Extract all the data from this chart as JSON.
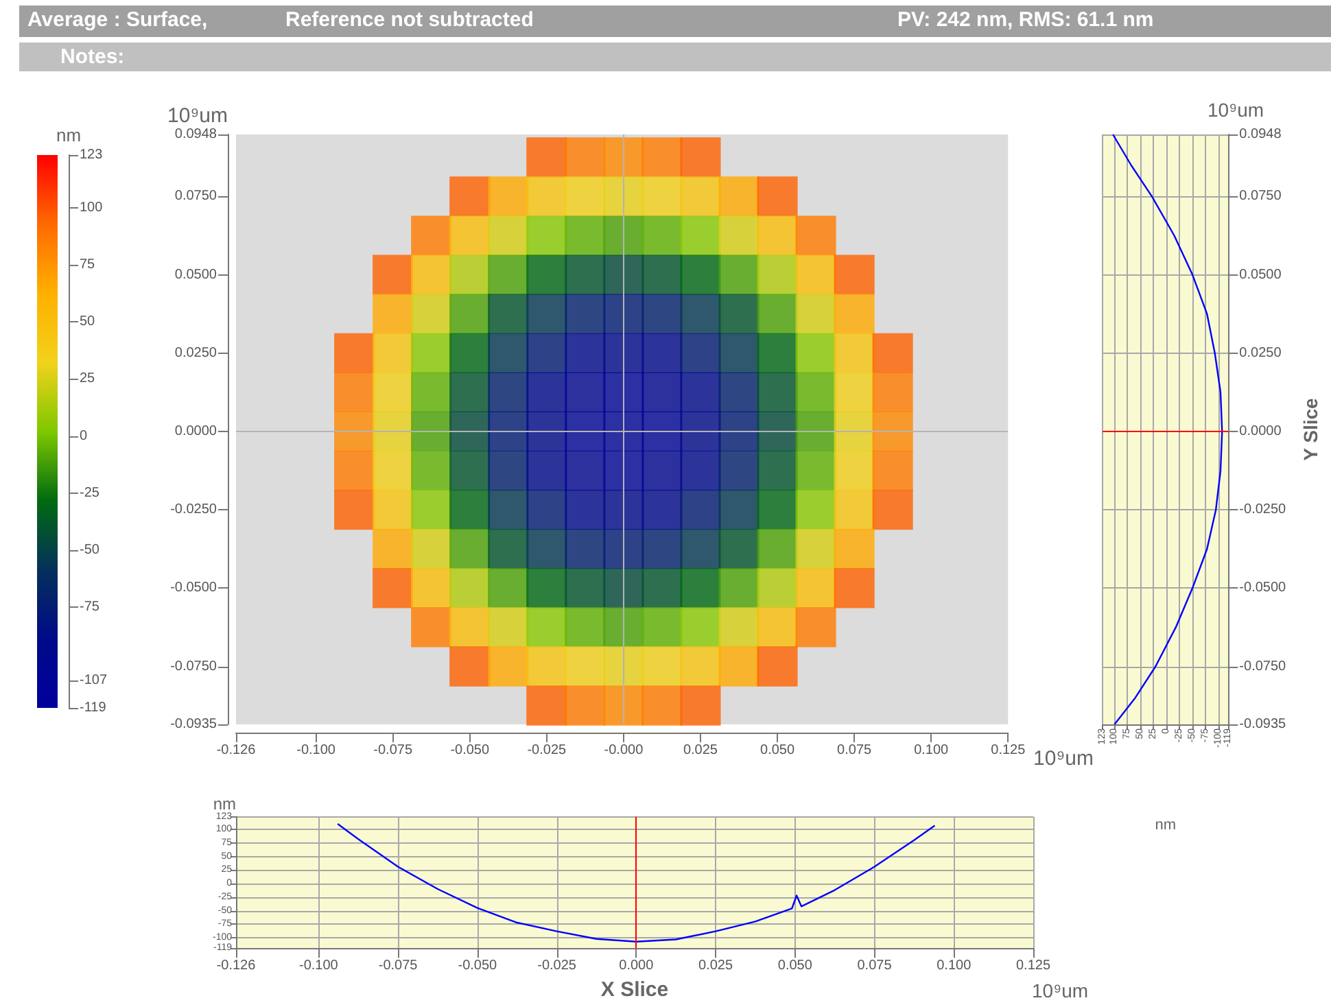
{
  "chart_data": [
    {
      "type": "scatter",
      "annotations": [
        "Average : Surface,",
        "Reference not subtracted",
        "PV: 242 nm, RMS: 61.1 nm",
        "Notes:"
      ],
      "xlabel": "10⁹um",
      "ylabel": "10⁹um",
      "clabel": "nm",
      "marker": "square",
      "grid": false,
      "x": [
        -0.025,
        -0.0125,
        0,
        0.0125,
        0.025,
        -0.05,
        -0.0375,
        -0.025,
        -0.0125,
        0,
        0.0125,
        0.025,
        0.0375,
        0.05,
        -0.0625,
        -0.05,
        -0.0375,
        -0.025,
        -0.0125,
        0,
        0.0125,
        0.025,
        0.0375,
        0.05,
        0.0625,
        -0.075,
        -0.0625,
        -0.05,
        -0.0375,
        -0.025,
        -0.0125,
        0,
        0.0125,
        0.025,
        0.0375,
        0.05,
        0.0625,
        0.075,
        -0.075,
        -0.0625,
        -0.05,
        -0.0375,
        -0.025,
        -0.0125,
        0,
        0.0125,
        0.025,
        0.0375,
        0.05,
        0.0625,
        0.075,
        -0.0875,
        -0.075,
        -0.0625,
        -0.05,
        -0.0375,
        -0.025,
        -0.0125,
        0,
        0.0125,
        0.025,
        0.0375,
        0.05,
        0.0625,
        0.075,
        0.0875,
        -0.0875,
        -0.075,
        -0.0625,
        -0.05,
        -0.0375,
        -0.025,
        -0.0125,
        0,
        0.0125,
        0.025,
        0.0375,
        0.05,
        0.0625,
        0.075,
        0.0875,
        -0.0875,
        -0.075,
        -0.0625,
        -0.05,
        -0.0375,
        -0.025,
        -0.0125,
        0,
        0.0125,
        0.025,
        0.0375,
        0.05,
        0.0625,
        0.075,
        0.0875,
        -0.0875,
        -0.075,
        -0.0625,
        -0.05,
        -0.0375,
        -0.025,
        -0.0125,
        0,
        0.0125,
        0.025,
        0.0375,
        0.05,
        0.0625,
        0.075,
        0.0875,
        -0.0875,
        -0.075,
        -0.0625,
        -0.05,
        -0.0375,
        -0.025,
        -0.0125,
        0,
        0.0125,
        0.025,
        0.0375,
        0.05,
        0.0625,
        0.075,
        0.0875,
        -0.075,
        -0.0625,
        -0.05,
        -0.0375,
        -0.025,
        -0.0125,
        0,
        0.0125,
        0.025,
        0.0375,
        0.05,
        0.0625,
        0.075,
        -0.075,
        -0.0625,
        -0.05,
        -0.0375,
        -0.025,
        -0.0125,
        0,
        0.0125,
        0.025,
        0.0375,
        0.05,
        0.0625,
        0.075,
        -0.0625,
        -0.05,
        -0.0375,
        -0.025,
        -0.0125,
        0,
        0.0125,
        0.025,
        0.0375,
        0.05,
        0.0625,
        -0.05,
        -0.0375,
        -0.025,
        -0.0125,
        0,
        0.0125,
        0.025,
        0.0375,
        0.05,
        -0.025,
        -0.0125,
        0,
        0.0125,
        0.025
      ],
      "values": [
        0.0875,
        0.0875,
        0.0875,
        0.0875,
        0.0875,
        0.075,
        0.075,
        0.075,
        0.075,
        0.075,
        0.075,
        0.075,
        0.075,
        0.075,
        0.0625,
        0.0625,
        0.0625,
        0.0625,
        0.0625,
        0.0625,
        0.0625,
        0.0625,
        0.0625,
        0.0625,
        0.0625,
        0.05,
        0.05,
        0.05,
        0.05,
        0.05,
        0.05,
        0.05,
        0.05,
        0.05,
        0.05,
        0.05,
        0.05,
        0.05,
        0.0375,
        0.0375,
        0.0375,
        0.0375,
        0.0375,
        0.0375,
        0.0375,
        0.0375,
        0.0375,
        0.0375,
        0.0375,
        0.0375,
        0.0375,
        0.025,
        0.025,
        0.025,
        0.025,
        0.025,
        0.025,
        0.025,
        0.025,
        0.025,
        0.025,
        0.025,
        0.025,
        0.025,
        0.025,
        0.025,
        0.0125,
        0.0125,
        0.0125,
        0.0125,
        0.0125,
        0.0125,
        0.0125,
        0.0125,
        0.0125,
        0.0125,
        0.0125,
        0.0125,
        0.0125,
        0.0125,
        0.0125,
        0,
        0,
        0,
        0,
        0,
        0,
        0,
        0,
        0,
        0,
        0,
        0,
        0,
        0,
        0,
        -0.0125,
        -0.0125,
        -0.0125,
        -0.0125,
        -0.0125,
        -0.0125,
        -0.0125,
        -0.0125,
        -0.0125,
        -0.0125,
        -0.0125,
        -0.0125,
        -0.0125,
        -0.0125,
        -0.0125,
        -0.025,
        -0.025,
        -0.025,
        -0.025,
        -0.025,
        -0.025,
        -0.025,
        -0.025,
        -0.025,
        -0.025,
        -0.025,
        -0.025,
        -0.025,
        -0.025,
        -0.025,
        -0.0375,
        -0.0375,
        -0.0375,
        -0.0375,
        -0.0375,
        -0.0375,
        -0.0375,
        -0.0375,
        -0.0375,
        -0.0375,
        -0.0375,
        -0.0375,
        -0.0375,
        -0.05,
        -0.05,
        -0.05,
        -0.05,
        -0.05,
        -0.05,
        -0.05,
        -0.05,
        -0.05,
        -0.05,
        -0.05,
        -0.05,
        -0.05,
        -0.0625,
        -0.0625,
        -0.0625,
        -0.0625,
        -0.0625,
        -0.0625,
        -0.0625,
        -0.0625,
        -0.0625,
        -0.0625,
        -0.0625,
        -0.075,
        -0.075,
        -0.075,
        -0.075,
        -0.075,
        -0.075,
        -0.075,
        -0.075,
        -0.075,
        -0.0875,
        -0.0875,
        -0.0875,
        -0.0875,
        -0.0875
      ],
      "cvalues": [
        95,
        85,
        80,
        85,
        95,
        95,
        65,
        45,
        35,
        30,
        35,
        45,
        65,
        95,
        85,
        50,
        25,
        5,
        -5,
        -10,
        -5,
        5,
        25,
        50,
        85,
        95,
        50,
        15,
        -10,
        -30,
        -40,
        -45,
        -40,
        -30,
        -10,
        15,
        50,
        95,
        65,
        25,
        -10,
        -40,
        -55,
        -70,
        -75,
        -70,
        -55,
        -40,
        -10,
        25,
        65,
        95,
        45,
        5,
        -30,
        -55,
        -75,
        -90,
        -90,
        -90,
        -75,
        -55,
        -30,
        5,
        45,
        95,
        85,
        35,
        -5,
        -40,
        -70,
        -90,
        -100,
        -105,
        -100,
        -90,
        -70,
        -40,
        -5,
        35,
        85,
        80,
        30,
        -10,
        -45,
        -75,
        -90,
        -105,
        -105,
        -105,
        -90,
        -75,
        -45,
        -10,
        30,
        80,
        85,
        35,
        -5,
        -40,
        -70,
        -90,
        -100,
        -105,
        -100,
        -90,
        -70,
        -40,
        -5,
        35,
        85,
        95,
        45,
        5,
        -30,
        -55,
        -75,
        -90,
        -90,
        -90,
        -75,
        -55,
        -30,
        5,
        45,
        95,
        65,
        25,
        -10,
        -40,
        -55,
        -70,
        -75,
        -70,
        -55,
        -40,
        -10,
        25,
        65,
        95,
        50,
        15,
        -10,
        -30,
        -40,
        -45,
        -40,
        -30,
        -10,
        15,
        50,
        95,
        85,
        50,
        25,
        5,
        -5,
        -10,
        -5,
        5,
        25,
        50,
        85,
        95,
        65,
        45,
        35,
        30,
        35,
        45,
        65,
        95,
        95,
        85,
        80,
        85,
        95
      ],
      "xlim": [
        -0.126,
        0.125
      ],
      "xticks": [
        {
          "value": -0.126,
          "label": "-0.126"
        },
        {
          "value": -0.1,
          "label": "-0.100"
        },
        {
          "value": -0.075,
          "label": "-0.075"
        },
        {
          "value": -0.05,
          "label": "-0.050"
        },
        {
          "value": -0.025,
          "label": "-0.025"
        },
        {
          "value": 0,
          "label": "-0.000"
        },
        {
          "value": 0.025,
          "label": "0.025"
        },
        {
          "value": 0.05,
          "label": "0.050"
        },
        {
          "value": 0.075,
          "label": "0.075"
        },
        {
          "value": 0.1,
          "label": "0.100"
        },
        {
          "value": 0.125,
          "label": "0.125"
        }
      ],
      "ylim": [
        -0.0935,
        0.0948
      ],
      "yticks": [
        {
          "value": -0.0935,
          "label": "-0.0935"
        },
        {
          "value": -0.075,
          "label": "-0.0750"
        },
        {
          "value": -0.05,
          "label": "-0.0500"
        },
        {
          "value": -0.025,
          "label": "-0.0250"
        },
        {
          "value": 0,
          "label": "0.0000"
        },
        {
          "value": 0.025,
          "label": "0.0250"
        },
        {
          "value": 0.05,
          "label": "0.0500"
        },
        {
          "value": 0.075,
          "label": "0.0750"
        },
        {
          "value": 0.0948,
          "label": "0.0948"
        }
      ],
      "clim": [
        -119,
        123
      ],
      "cticks": [
        123,
        100,
        75,
        50,
        25,
        0,
        -25,
        -50,
        -75,
        -107,
        -119
      ],
      "ref_lines": [
        {
          "axis": "x",
          "value": 0,
          "color": "#b4b4b4"
        },
        {
          "axis": "y",
          "value": 0,
          "color": "#b4b4b4"
        }
      ]
    },
    {
      "type": "line",
      "xlabel": "X Slice",
      "ylabel": "nm",
      "annotations": [
        "10⁹um"
      ],
      "grid": true,
      "marker": "none",
      "series": [
        {
          "color": "#0000ff",
          "x": [
            -0.094,
            -0.0875,
            -0.075,
            -0.0625,
            -0.05,
            -0.0375,
            -0.025,
            -0.0125,
            0,
            0.0125,
            0.025,
            0.0375,
            0.049,
            0.0505,
            0.052,
            0.0625,
            0.075,
            0.0875,
            0.094
          ],
          "values": [
            110,
            82,
            31,
            -10,
            -45,
            -72,
            -88,
            -102,
            -107,
            -103,
            -88,
            -70,
            -46,
            -22,
            -42,
            -12,
            31,
            80,
            107
          ]
        }
      ],
      "xlim": [
        -0.126,
        0.125
      ],
      "xticks": [
        {
          "value": -0.126,
          "label": "-0.126"
        },
        {
          "value": -0.1,
          "label": "-0.100"
        },
        {
          "value": -0.075,
          "label": "-0.075"
        },
        {
          "value": -0.05,
          "label": "-0.050"
        },
        {
          "value": -0.025,
          "label": "-0.025"
        },
        {
          "value": 0,
          "label": "0.000"
        },
        {
          "value": 0.025,
          "label": "0.025"
        },
        {
          "value": 0.05,
          "label": "0.050"
        },
        {
          "value": 0.075,
          "label": "0.075"
        },
        {
          "value": 0.1,
          "label": "0.100"
        },
        {
          "value": 0.125,
          "label": "0.125"
        }
      ],
      "ylim": [
        -119,
        123
      ],
      "yticks": [
        123,
        100,
        75,
        50,
        25,
        0,
        -25,
        -50,
        -75,
        -100,
        -119
      ],
      "ref_lines": [
        {
          "axis": "x",
          "value": 0,
          "color": "#ff0000"
        }
      ]
    },
    {
      "type": "line",
      "xlabel": "nm",
      "ylabel": "Y Slice",
      "annotations": [
        "10⁹um"
      ],
      "grid": true,
      "marker": "none",
      "series": [
        {
          "color": "#0000ff",
          "x": [
            103,
            68,
            28,
            -15,
            -50,
            -78,
            -93,
            -104,
            -107,
            -104,
            -95,
            -78,
            -50,
            -18,
            21,
            60,
            100
          ],
          "values": [
            0.0948,
            0.085,
            0.075,
            0.0625,
            0.05,
            0.0375,
            0.025,
            0.0125,
            0,
            -0.0125,
            -0.025,
            -0.0375,
            -0.05,
            -0.0625,
            -0.075,
            -0.085,
            -0.0935
          ]
        }
      ],
      "xlim": [
        123,
        -119
      ],
      "xticks": [
        123,
        100,
        75,
        50,
        25,
        0,
        -25,
        -50,
        -75,
        -100,
        -119
      ],
      "ylim": [
        -0.0935,
        0.0948
      ],
      "yticks": [
        {
          "value": -0.0935,
          "label": "-0.0935"
        },
        {
          "value": -0.075,
          "label": "-0.0750"
        },
        {
          "value": -0.05,
          "label": "-0.0500"
        },
        {
          "value": -0.025,
          "label": "-0.0250"
        },
        {
          "value": 0,
          "label": "0.0000"
        },
        {
          "value": 0.025,
          "label": "0.0250"
        },
        {
          "value": 0.05,
          "label": "0.0500"
        },
        {
          "value": 0.075,
          "label": "0.0750"
        },
        {
          "value": 0.0948,
          "label": "0.0948"
        }
      ],
      "ref_lines": [
        {
          "axis": "y",
          "value": 0,
          "color": "#ff0000"
        }
      ]
    }
  ]
}
